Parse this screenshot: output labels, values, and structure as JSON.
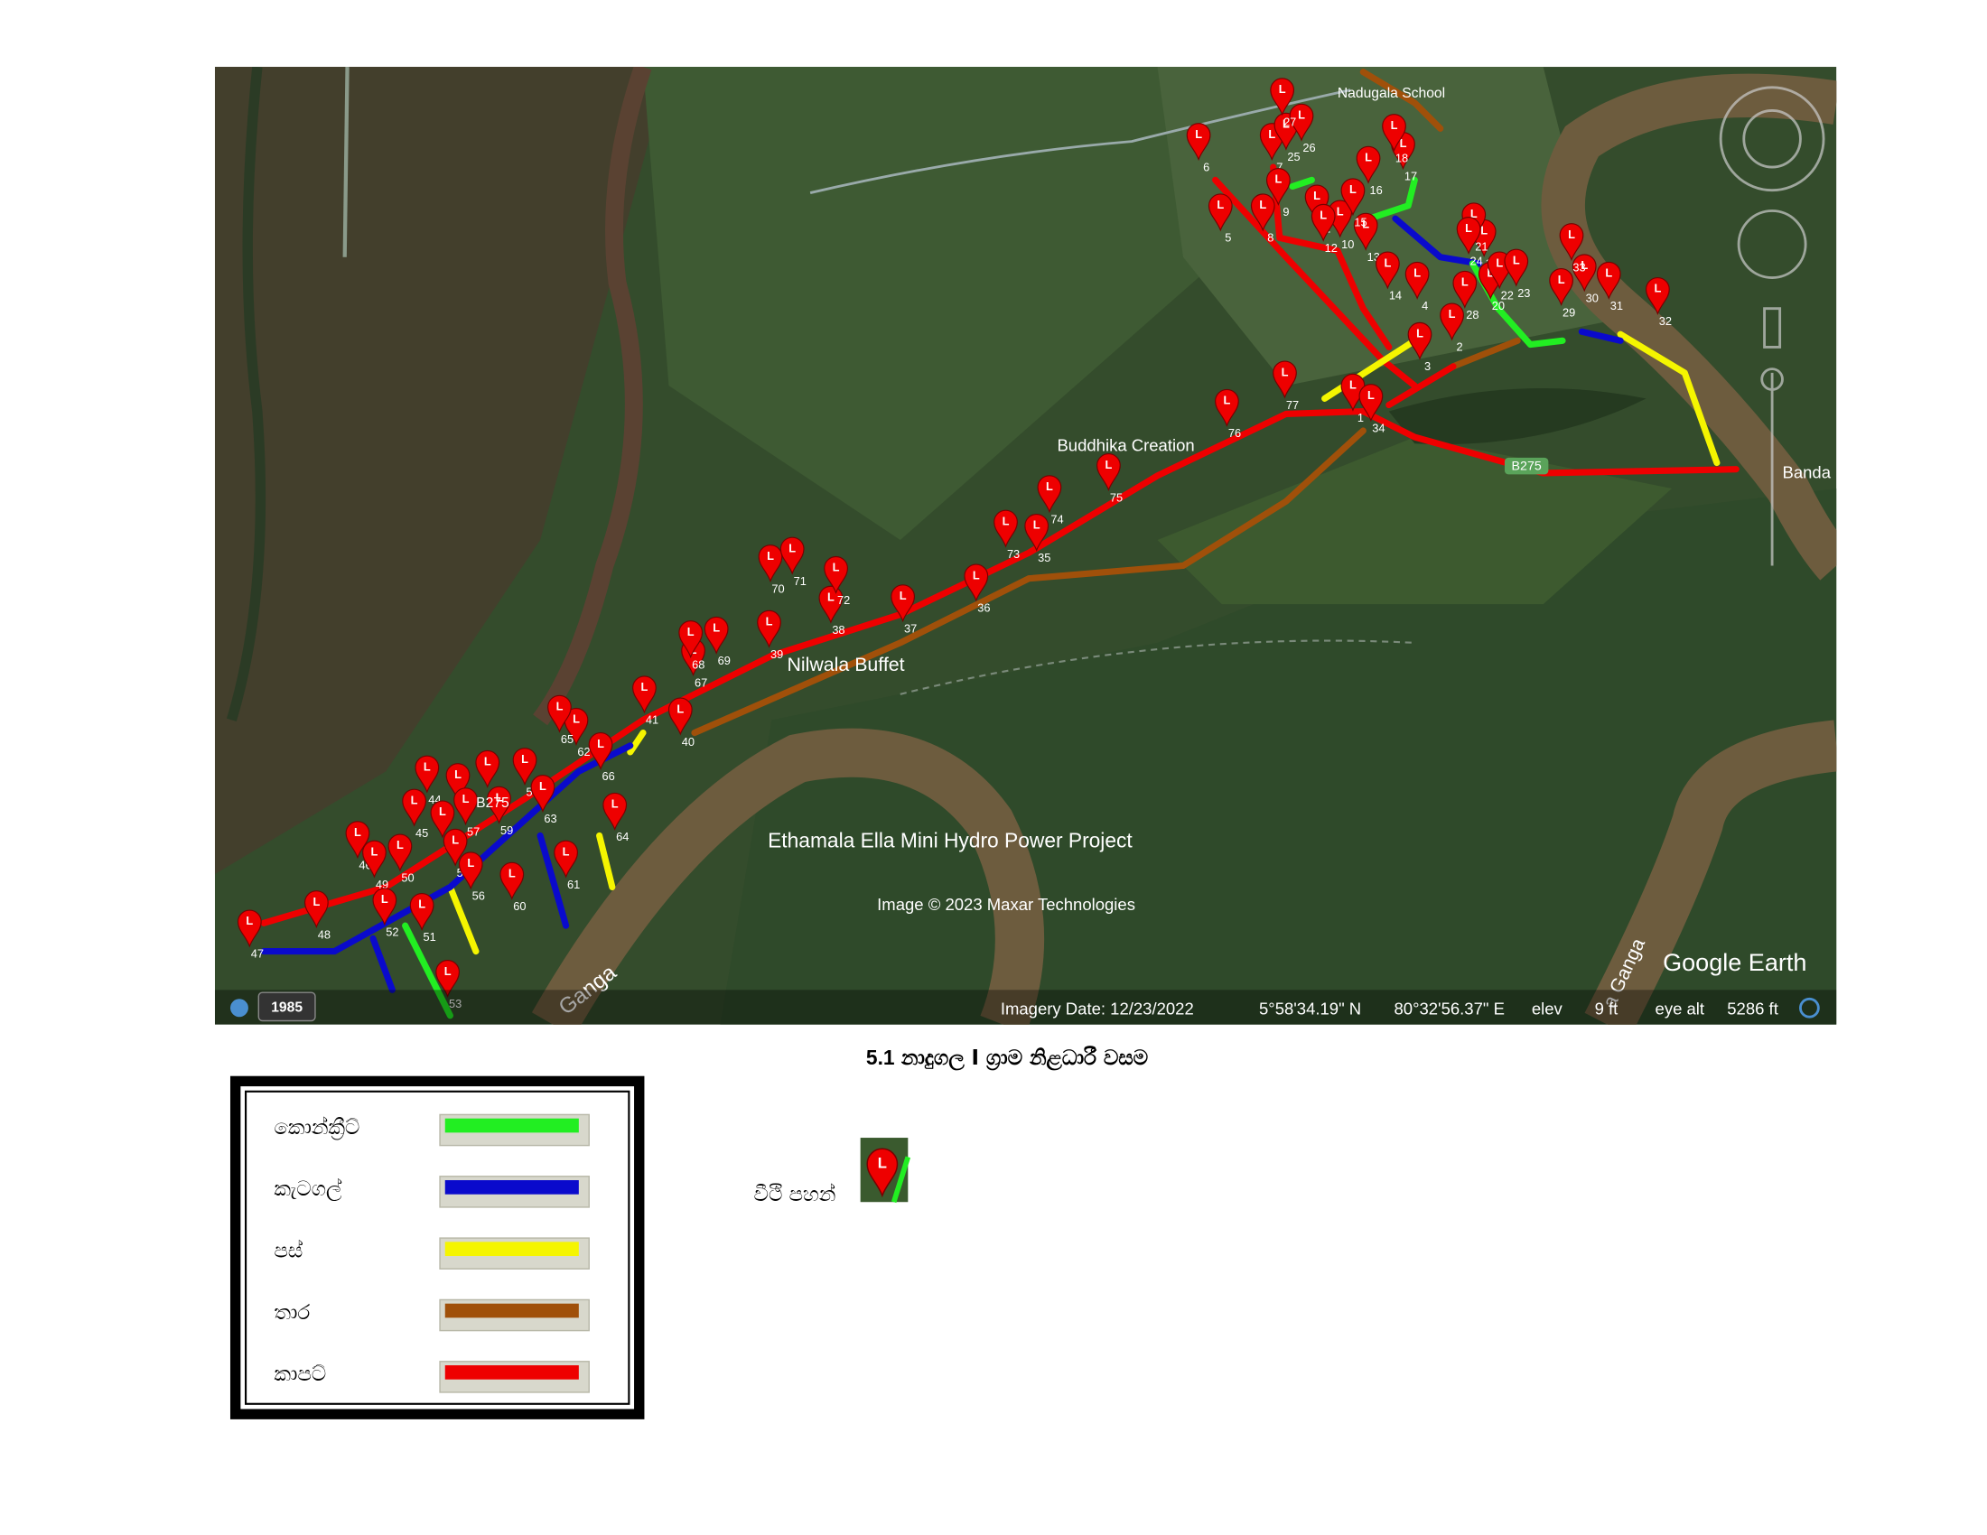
{
  "map": {
    "places": {
      "school": "Nadugala School",
      "buddhika": "Buddhika Creation",
      "nilwala": "Nilwala Buffet",
      "hydro": "Ethamala Ella Mini Hydro Power Project",
      "road": "B275",
      "road_small": "B275",
      "banda": "Banda",
      "river_left": "Ganga",
      "river_right": "a Ganga"
    },
    "credit": "Image © 2023 Maxar Technologies",
    "brand": "Google Earth",
    "status": {
      "year": "1985",
      "imagery_date": "Imagery Date: 12/23/2022",
      "lat": "5°58'34.19\" N",
      "lon": "80°32'56.37\" E",
      "elev_label": "elev",
      "elev": "9 ft",
      "eye_label": "eye alt",
      "eye": "5286 ft"
    },
    "lamp_labels": [
      "1",
      "2",
      "3",
      "4",
      "5",
      "6",
      "7",
      "8",
      "9",
      "10",
      "11",
      "12",
      "13",
      "14",
      "15",
      "16",
      "17",
      "18",
      "19",
      "20",
      "21",
      "22",
      "23",
      "24",
      "25",
      "26",
      "27",
      "28",
      "29",
      "30",
      "31",
      "32",
      "33",
      "34",
      "35",
      "36",
      "37",
      "38",
      "39",
      "40",
      "41",
      "42",
      "43",
      "44",
      "45",
      "46",
      "47",
      "48",
      "49",
      "50",
      "51",
      "52",
      "53",
      "54",
      "55",
      "56",
      "57",
      "58",
      "59",
      "60",
      "61",
      "62",
      "63",
      "64",
      "65",
      "66",
      "67",
      "68",
      "69",
      "70",
      "71",
      "72",
      "73",
      "74",
      "75",
      "76",
      "77"
    ]
  },
  "caption": {
    "number": "5.1",
    "text": "නාදුගල I ග්‍රාම නිළධාරී වසම"
  },
  "legend": {
    "items": [
      {
        "label": "කොන්ක්‍රීට්",
        "color": "#22ee22"
      },
      {
        "label": "කැටගල්",
        "color": "#0a0acc"
      },
      {
        "label": "පස්",
        "color": "#f5f500"
      },
      {
        "label": "තාර",
        "color": "#a0500a"
      },
      {
        "label": "කාපට්",
        "color": "#ee0000"
      }
    ]
  },
  "street_light": {
    "label": "වීථි පහන්"
  }
}
